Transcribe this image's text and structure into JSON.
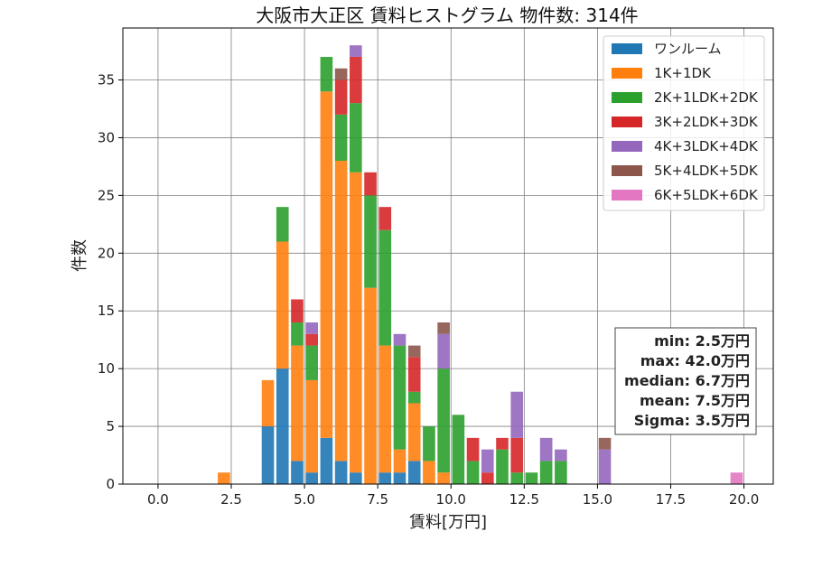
{
  "chart_data": {
    "type": "bar",
    "stacked": true,
    "title": "大阪市大正区 賃料ヒストグラム 物件数: 314件",
    "xlabel": "賃料[万円]",
    "ylabel": "件数",
    "xlim": [
      -1.2,
      21.0
    ],
    "ylim": [
      0,
      39.5
    ],
    "xticks": [
      0.0,
      2.5,
      5.0,
      7.5,
      10.0,
      12.5,
      15.0,
      17.5,
      20.0
    ],
    "xtick_labels": [
      "0.0",
      "2.5",
      "5.0",
      "7.5",
      "10.0",
      "12.5",
      "15.0",
      "17.5",
      "20.0"
    ],
    "yticks": [
      0,
      5,
      10,
      15,
      20,
      25,
      30,
      35
    ],
    "ytick_labels": [
      "0",
      "5",
      "10",
      "15",
      "20",
      "25",
      "30",
      "35"
    ],
    "grid": true,
    "legend_position": "top-right",
    "bin_width": 0.5,
    "bins": [
      2.0,
      3.5,
      4.0,
      4.5,
      5.0,
      5.5,
      6.0,
      6.5,
      7.0,
      7.5,
      8.0,
      8.5,
      9.0,
      9.5,
      10.0,
      10.5,
      11.0,
      11.5,
      12.0,
      12.5,
      13.0,
      13.5,
      15.0,
      19.5
    ],
    "series": [
      {
        "name": "ワンルーム",
        "color": "#1f77b4",
        "values": [
          0,
          5,
          10,
          2,
          1,
          4,
          2,
          1,
          0,
          1,
          1,
          2,
          0,
          0,
          0,
          0,
          0,
          0,
          0,
          0,
          0,
          0,
          0,
          0
        ]
      },
      {
        "name": "1K+1DK",
        "color": "#ff7f0e",
        "values": [
          1,
          4,
          11,
          10,
          8,
          30,
          26,
          26,
          17,
          11,
          2,
          5,
          2,
          1,
          0,
          0,
          0,
          0,
          0,
          0,
          0,
          0,
          0,
          0
        ]
      },
      {
        "name": "2K+1LDK+2DK",
        "color": "#2ca02c",
        "values": [
          0,
          0,
          3,
          2,
          3,
          3,
          4,
          6,
          8,
          10,
          9,
          1,
          3,
          9,
          6,
          2,
          0,
          3,
          1,
          1,
          2,
          2,
          0,
          0
        ]
      },
      {
        "name": "3K+2LDK+3DK",
        "color": "#d62728",
        "values": [
          0,
          0,
          0,
          2,
          1,
          0,
          3,
          4,
          2,
          2,
          0,
          3,
          0,
          0,
          0,
          2,
          1,
          1,
          3,
          0,
          0,
          0,
          0,
          0
        ]
      },
      {
        "name": "4K+3LDK+4DK",
        "color": "#9467bd",
        "values": [
          0,
          0,
          0,
          0,
          1,
          0,
          0,
          1,
          0,
          0,
          1,
          0,
          0,
          3,
          0,
          0,
          2,
          0,
          4,
          0,
          2,
          1,
          3,
          0
        ]
      },
      {
        "name": "5K+4LDK+5DK",
        "color": "#8c564b",
        "values": [
          0,
          0,
          0,
          0,
          0,
          0,
          1,
          0,
          0,
          0,
          0,
          1,
          0,
          1,
          0,
          0,
          0,
          0,
          0,
          0,
          0,
          0,
          1,
          0
        ]
      },
      {
        "name": "6K+5LDK+6DK",
        "color": "#e377c2",
        "values": [
          0,
          0,
          0,
          0,
          0,
          0,
          0,
          0,
          0,
          0,
          0,
          0,
          0,
          0,
          0,
          0,
          0,
          0,
          0,
          0,
          0,
          0,
          0,
          1
        ]
      }
    ],
    "stats": [
      "min: 2.5万円",
      "max: 42.0万円",
      "median: 6.7万円",
      "mean: 7.5万円",
      "Sigma: 3.5万円"
    ]
  }
}
